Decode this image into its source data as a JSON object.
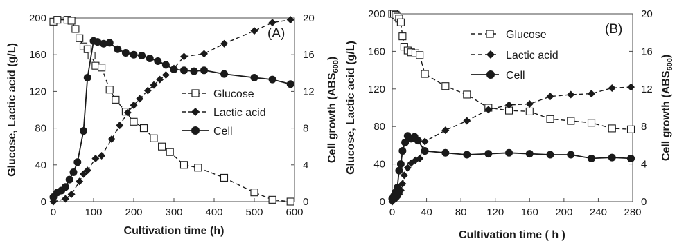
{
  "figure": {
    "panels": [
      {
        "label": "(A)",
        "xlabel": "Cultivation time (h)",
        "ylabel": "Glucose, Lactic acid (g/L)",
        "y2label": "Cell growth (ABS600)",
        "xlim": [
          0,
          600
        ],
        "xticks": [
          0,
          100,
          200,
          300,
          400,
          500,
          600
        ],
        "ylim": [
          0,
          200
        ],
        "yticks": [
          0,
          40,
          80,
          120,
          160,
          200
        ],
        "y2lim": [
          0,
          20
        ],
        "y2ticks": [
          0,
          4,
          8,
          12,
          16,
          20
        ],
        "legend_position": "center-right"
      },
      {
        "label": "(B)",
        "xlabel": "Cultivation time ( h )",
        "ylabel": "Glucose, Lactic acid (g/L)",
        "y2label": "Cell growth (ABS600)",
        "xlim": [
          0,
          280
        ],
        "xticks": [
          0,
          40,
          80,
          120,
          160,
          200,
          240,
          280
        ],
        "ylim": [
          0,
          200
        ],
        "yticks": [
          0,
          40,
          80,
          120,
          160,
          200
        ],
        "y2lim": [
          0,
          20
        ],
        "y2ticks": [
          0,
          4,
          8,
          12,
          16,
          20
        ],
        "legend_position": "top-center"
      }
    ]
  },
  "chart_data": [
    {
      "type": "line",
      "label": "(A)",
      "xlabel": "Cultivation time (h)",
      "ylabel": "Glucose, Lactic acid (g/L)",
      "y2label": "Cell growth (ABS600)",
      "xlim": [
        0,
        600
      ],
      "ylim": [
        0,
        200
      ],
      "y2lim": [
        0,
        20
      ],
      "grid": false,
      "legend": "center-right",
      "series": [
        {
          "name": "Glucose",
          "axis": "left",
          "marker": "open-square",
          "line": "dashed",
          "x": [
            0,
            10,
            35,
            45,
            55,
            65,
            75,
            85,
            95,
            105,
            120,
            140,
            155,
            180,
            200,
            225,
            250,
            270,
            290,
            325,
            360,
            425,
            500,
            545,
            590
          ],
          "y": [
            196,
            198,
            198,
            197,
            188,
            178,
            169,
            166,
            159,
            148,
            146,
            122,
            111,
            98,
            87,
            80,
            69,
            60,
            54,
            40,
            37,
            26,
            10,
            2,
            0
          ]
        },
        {
          "name": "Lactic acid",
          "axis": "left",
          "marker": "filled-diamond",
          "line": "dashed",
          "x": [
            0,
            30,
            45,
            65,
            75,
            85,
            105,
            120,
            145,
            165,
            185,
            200,
            215,
            235,
            250,
            265,
            280,
            300,
            325,
            375,
            425,
            500,
            545,
            590
          ],
          "y": [
            0,
            3,
            8,
            22,
            30,
            34,
            47,
            50,
            68,
            83,
            97,
            105,
            112,
            121,
            127,
            133,
            138,
            145,
            158,
            161,
            172,
            186,
            195,
            198
          ]
        },
        {
          "name": "Cell",
          "axis": "right",
          "marker": "filled-circle",
          "line": "solid",
          "x": [
            0,
            10,
            20,
            30,
            40,
            50,
            60,
            75,
            85,
            100,
            110,
            125,
            140,
            160,
            180,
            200,
            220,
            240,
            260,
            280,
            300,
            325,
            350,
            375,
            425,
            500,
            545,
            590
          ],
          "y": [
            0.5,
            1.0,
            1.2,
            1.6,
            2.4,
            3.2,
            4.3,
            7.7,
            13.5,
            17.5,
            17.4,
            17.2,
            17.3,
            16.6,
            16.2,
            16.0,
            15.9,
            15.6,
            15.3,
            14.9,
            14.4,
            14.3,
            14.2,
            14.3,
            13.9,
            13.5,
            13.3,
            12.8
          ]
        }
      ]
    },
    {
      "type": "line",
      "label": "(B)",
      "xlabel": "Cultivation time ( h )",
      "ylabel": "Glucose, Lactic acid (g/L)",
      "y2label": "Cell growth (ABS600)",
      "xlim": [
        0,
        280
      ],
      "ylim": [
        0,
        200
      ],
      "y2lim": [
        0,
        20
      ],
      "grid": false,
      "legend": "top-center",
      "series": [
        {
          "name": "Glucose",
          "axis": "left",
          "marker": "open-square",
          "line": "dashed",
          "x": [
            0,
            2,
            4,
            6,
            8,
            10,
            12,
            14,
            18,
            22,
            27,
            32,
            38,
            62,
            87,
            112,
            136,
            160,
            184,
            208,
            232,
            256,
            278
          ],
          "y": [
            200,
            200,
            199,
            197,
            195,
            191,
            176,
            165,
            161,
            159,
            158,
            156,
            136,
            123,
            114,
            100,
            97,
            96,
            88,
            86,
            84,
            78,
            77
          ]
        },
        {
          "name": "Lactic acid",
          "axis": "left",
          "marker": "filled-diamond",
          "line": "dashed",
          "x": [
            0,
            2,
            4,
            6,
            8,
            10,
            12,
            14,
            18,
            22,
            27,
            32,
            38,
            62,
            87,
            112,
            136,
            160,
            184,
            208,
            232,
            256,
            278
          ],
          "y": [
            0,
            2,
            3,
            5,
            8,
            12,
            19,
            28,
            36,
            41,
            44,
            46,
            64,
            76,
            86,
            98,
            103,
            104,
            112,
            114,
            115,
            121,
            122
          ]
        },
        {
          "name": "Cell",
          "axis": "right",
          "marker": "filled-circle",
          "line": "solid",
          "x": [
            0,
            2,
            4,
            6,
            8,
            10,
            12,
            15,
            18,
            22,
            26,
            30,
            38,
            62,
            87,
            112,
            136,
            160,
            184,
            208,
            232,
            256,
            278
          ],
          "y": [
            0.3,
            0.6,
            1.0,
            1.5,
            3.3,
            4.0,
            5.4,
            6.3,
            7.0,
            6.7,
            6.9,
            6.5,
            5.4,
            5.2,
            5.0,
            5.1,
            5.2,
            5.1,
            5.0,
            5.0,
            4.6,
            4.7,
            4.6
          ]
        }
      ]
    }
  ]
}
